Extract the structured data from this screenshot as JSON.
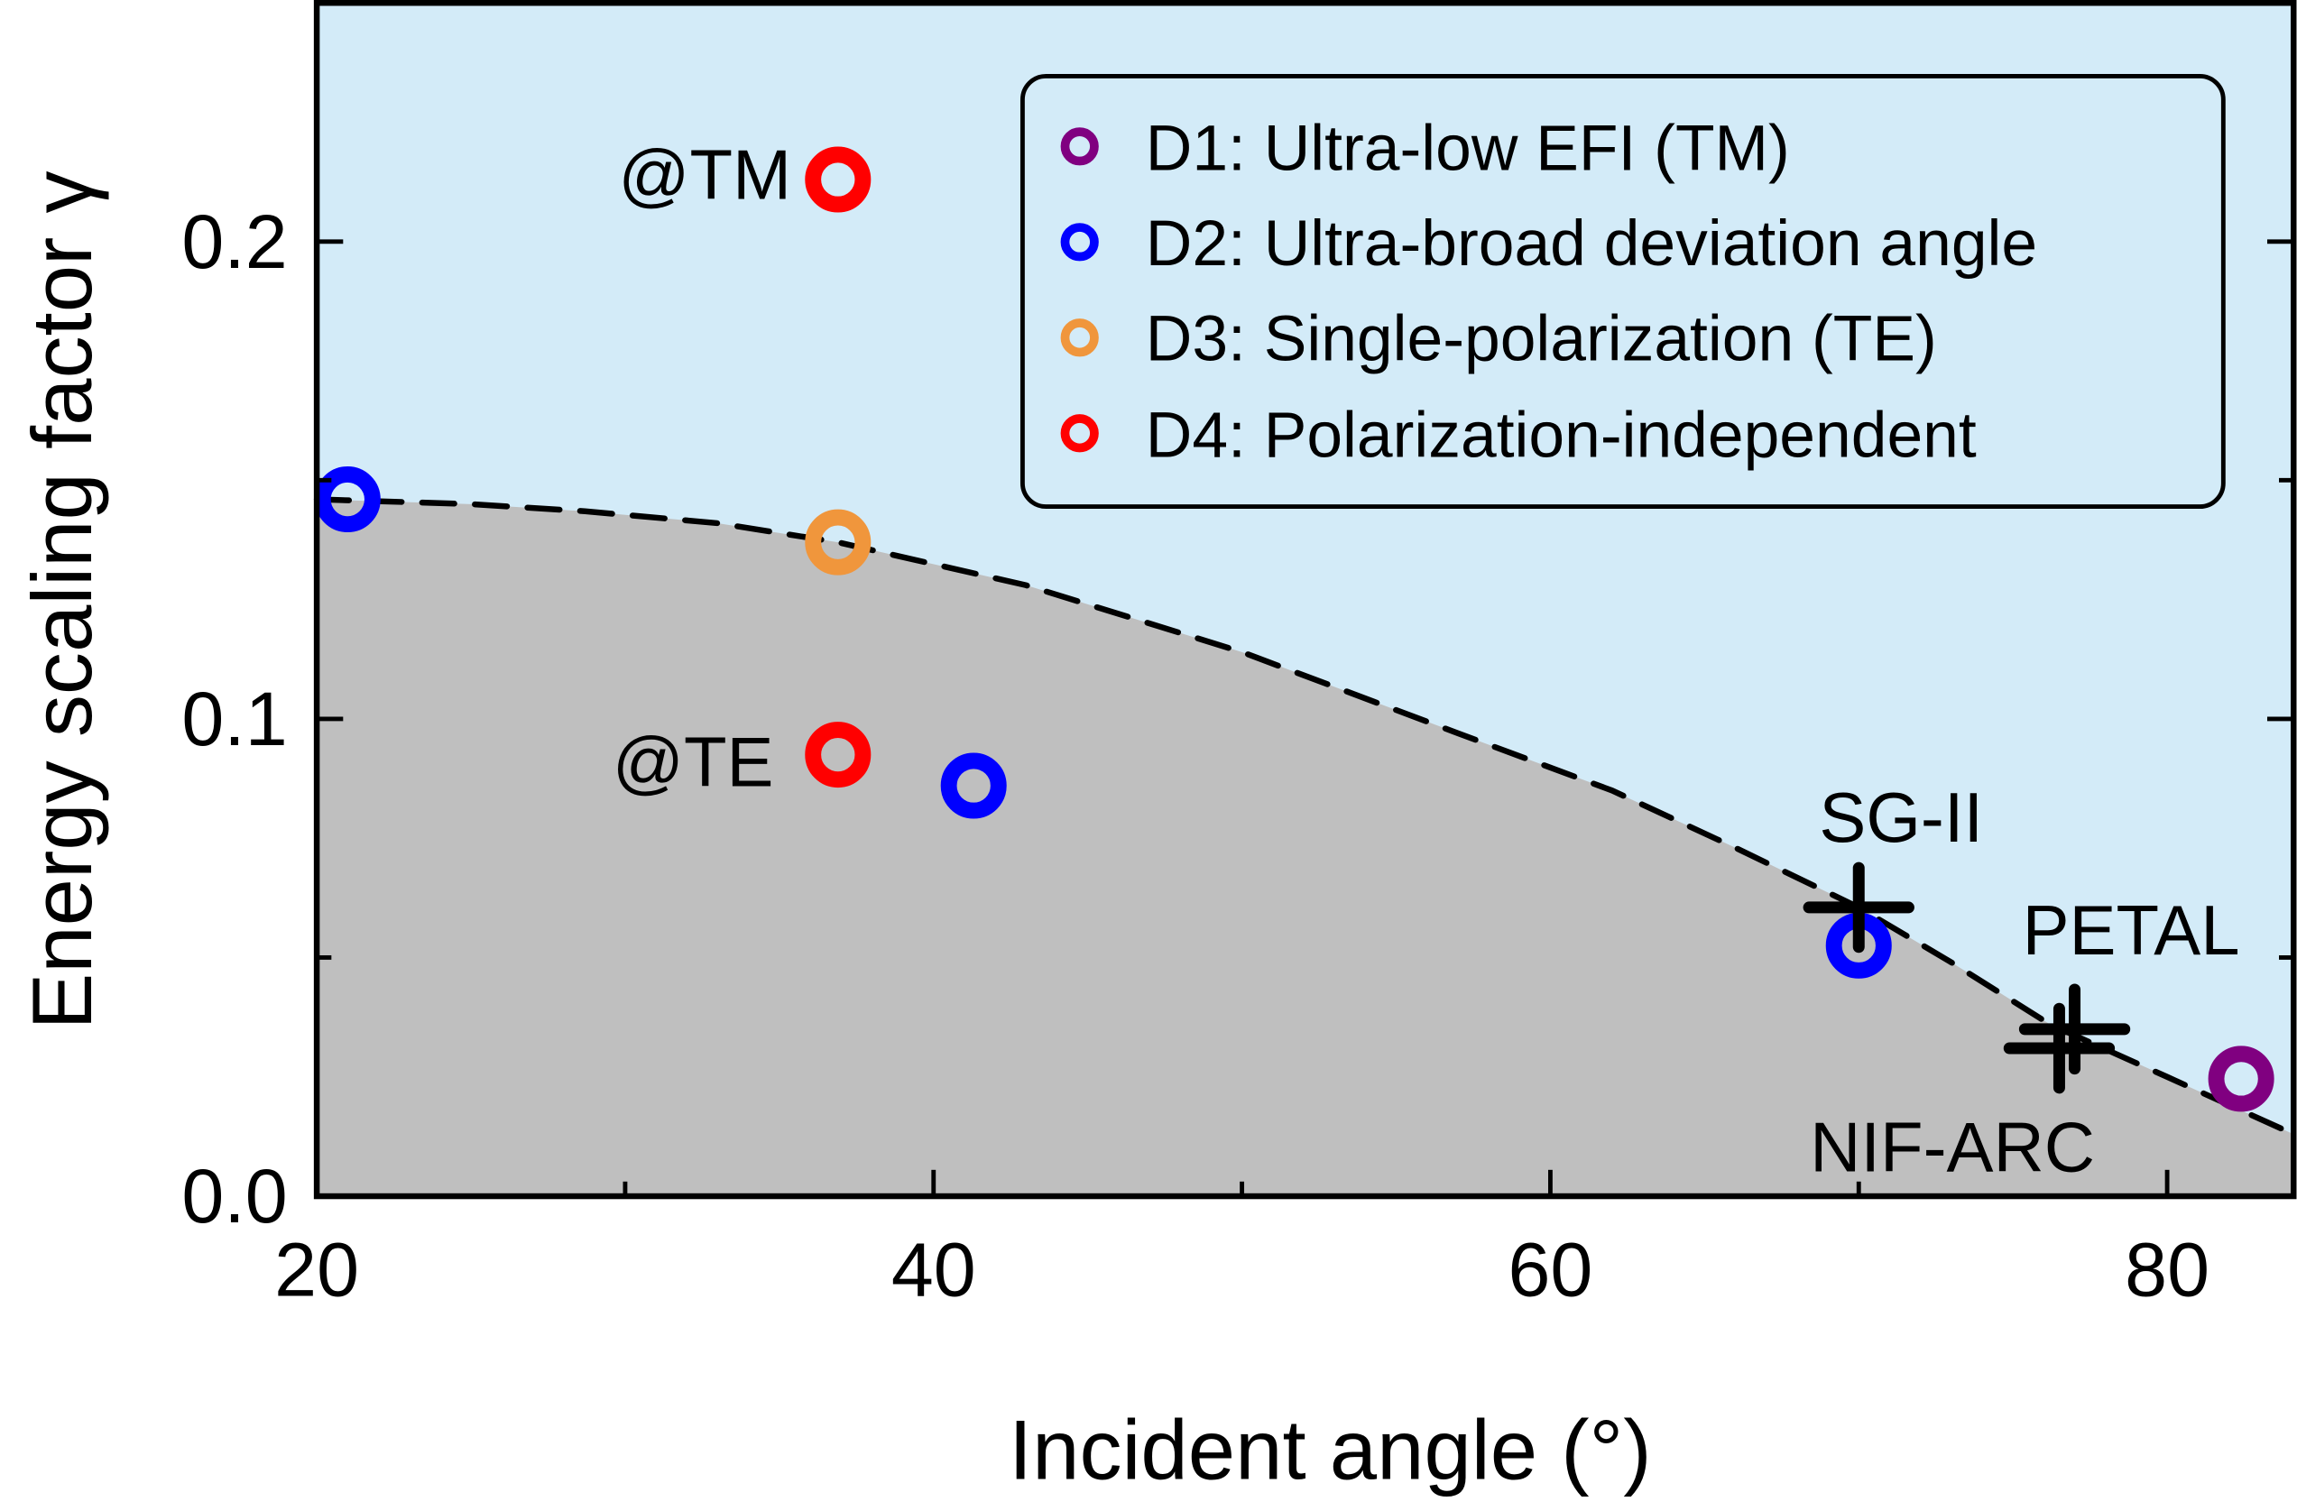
{
  "chart_data": {
    "type": "scatter",
    "title": "",
    "xlabel": "Incident angle (°)",
    "ylabel": "Energy scaling factor γ",
    "xlim": [
      20,
      84.1
    ],
    "ylim": [
      0,
      0.25
    ],
    "xticks": [
      20,
      40,
      60,
      80
    ],
    "xtick_labels": [
      "20",
      "40",
      "60",
      "80"
    ],
    "yticks": [
      0.0,
      0.1,
      0.2
    ],
    "ytick_labels": [
      "0.0",
      "0.1",
      "0.2"
    ],
    "grid": false,
    "legend_position": "top-right",
    "colors": {
      "above": "#d3ebf8",
      "below": "#bfbfbf",
      "D1": "#800080",
      "D2": "#0000ff",
      "D3": "#f0963c",
      "D4": "#ff0000"
    },
    "series": [
      {
        "name": "D1: Ultra-low EFI (TM)",
        "key": "D1",
        "points": [
          [
            82.4,
            0.0246
          ]
        ]
      },
      {
        "name": "D2: Ultra-broad deviation angle",
        "key": "D2",
        "points": [
          [
            21.0,
            0.146
          ],
          [
            41.3,
            0.086
          ],
          [
            70.0,
            0.0525
          ]
        ]
      },
      {
        "name": "D3: Single-polarization (TE)",
        "key": "D3",
        "points": [
          [
            36.9,
            0.137
          ]
        ]
      },
      {
        "name": "D4: Polarization-independent",
        "key": "D4",
        "points": [
          [
            36.9,
            0.213
          ],
          [
            36.9,
            0.0925
          ]
        ]
      }
    ],
    "boundary_curve": {
      "style": "dashed",
      "x": [
        20,
        25,
        28.7,
        33,
        36.9,
        43,
        50,
        57,
        62,
        66,
        70,
        73,
        76.2,
        80,
        84.1
      ],
      "y": [
        0.146,
        0.145,
        0.1435,
        0.141,
        0.137,
        0.128,
        0.114,
        0.097,
        0.085,
        0.073,
        0.0605,
        0.049,
        0.036,
        0.025,
        0.013
      ]
    },
    "facilities": [
      {
        "label": "SG-II",
        "x": 70.0,
        "y": 0.0605
      },
      {
        "label": "PETAL",
        "x": 77.0,
        "y": 0.035
      },
      {
        "label": "NIF-ARC",
        "x": 76.5,
        "y": 0.031
      }
    ],
    "annotations": [
      {
        "text": "@TM",
        "x": 36.9,
        "y": 0.213
      },
      {
        "text": "@TE",
        "x": 36.9,
        "y": 0.0925
      }
    ]
  }
}
